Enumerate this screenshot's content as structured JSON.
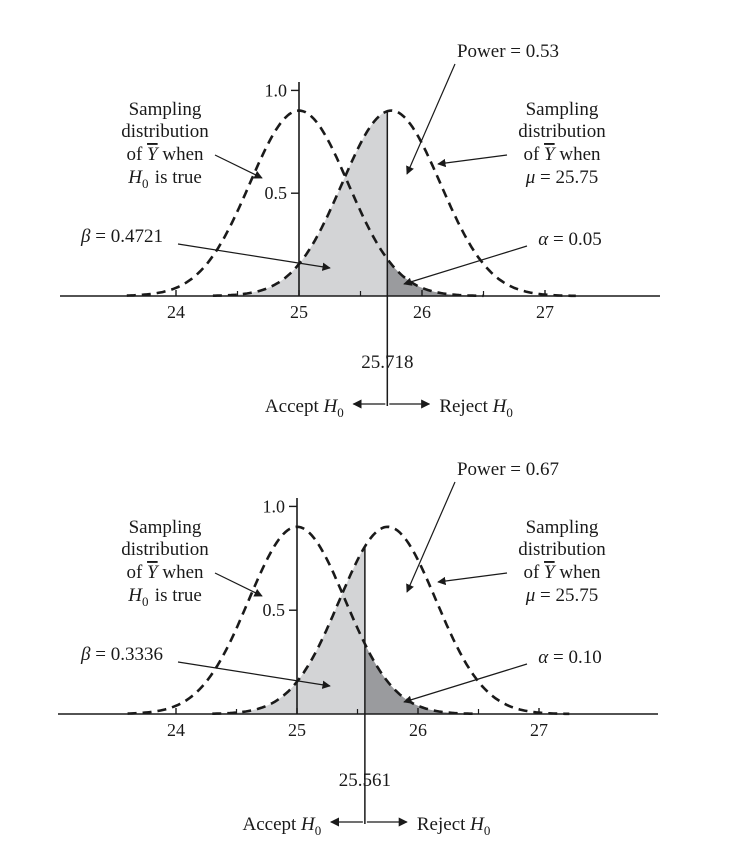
{
  "chart_data": [
    {
      "type": "area",
      "panel": "top",
      "x_range": [
        23.5,
        27.2
      ],
      "y_ticks": [
        {
          "value": 1.0,
          "label": "1.0"
        },
        {
          "value": 0.5,
          "label": "0.5"
        }
      ],
      "x_ticks": [
        {
          "value": 24,
          "label": "24"
        },
        {
          "value": 25,
          "label": "25"
        },
        {
          "value": 26,
          "label": "26"
        },
        {
          "value": 27,
          "label": "27"
        }
      ],
      "series": [
        {
          "mean": 25.0,
          "sd": 0.4,
          "peak": 0.9
        },
        {
          "mean": 25.75,
          "sd": 0.4,
          "peak": 0.9
        }
      ],
      "critical_value": 25.718,
      "critical_label": "25.718",
      "annotations": {
        "null_dist": [
          "Sampling",
          "distribution",
          "of Y̅ when",
          "H0 is true"
        ],
        "alt_dist": [
          "Sampling",
          "distribution",
          "of Y̅ when",
          "μ = 25.75"
        ],
        "power": "Power = 0.53",
        "beta": "β = 0.4721",
        "alpha": "α = 0.05",
        "accept": "Accept H0",
        "reject": "Reject H0"
      },
      "colors": {
        "beta_fill": "#d3d4d6",
        "alpha_fill": "#9a9b9e",
        "curve": "#1a1a1a"
      }
    },
    {
      "type": "area",
      "panel": "bottom",
      "x_range": [
        23.5,
        27.2
      ],
      "y_ticks": [
        {
          "value": 1.0,
          "label": "1.0"
        },
        {
          "value": 0.5,
          "label": "0.5"
        }
      ],
      "x_ticks": [
        {
          "value": 24,
          "label": "24"
        },
        {
          "value": 25,
          "label": "25"
        },
        {
          "value": 26,
          "label": "26"
        },
        {
          "value": 27,
          "label": "27"
        }
      ],
      "series": [
        {
          "mean": 25.0,
          "sd": 0.4,
          "peak": 0.9
        },
        {
          "mean": 25.75,
          "sd": 0.4,
          "peak": 0.9
        }
      ],
      "critical_value": 25.561,
      "critical_label": "25.561",
      "annotations": {
        "null_dist": [
          "Sampling",
          "distribution",
          "of Y̅ when",
          "H0 is true"
        ],
        "alt_dist": [
          "Sampling",
          "distribution",
          "of Y̅ when",
          "μ = 25.75"
        ],
        "power": "Power = 0.67",
        "beta": "β = 0.3336",
        "alpha": "α = 0.10",
        "accept": "Accept H0",
        "reject": "Reject H0"
      },
      "colors": {
        "beta_fill": "#d3d4d6",
        "alpha_fill": "#9a9b9e",
        "curve": "#1a1a1a"
      }
    }
  ]
}
